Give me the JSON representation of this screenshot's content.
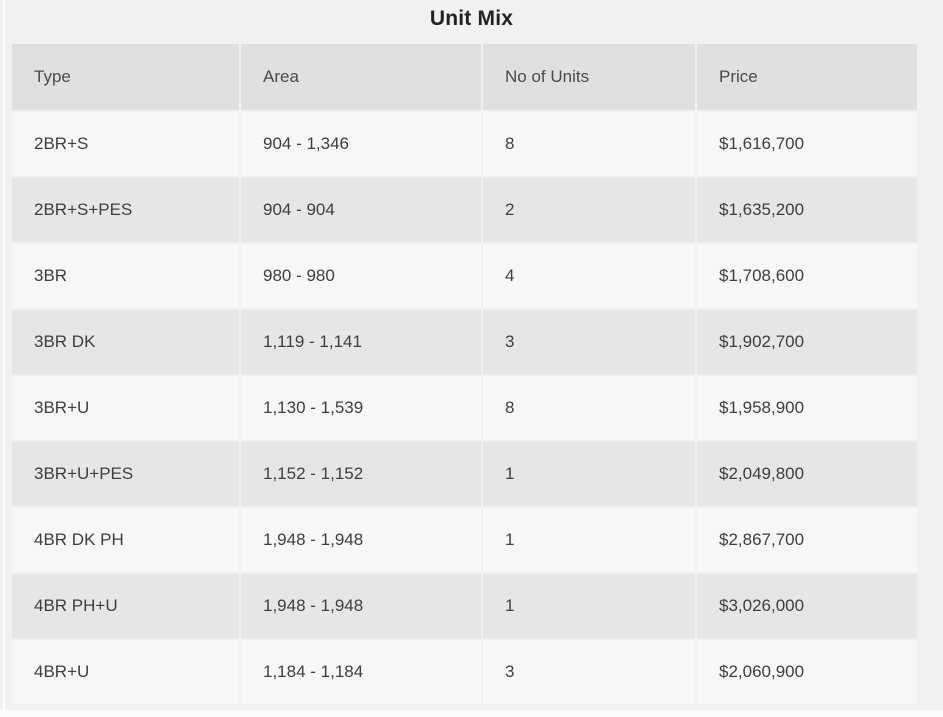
{
  "page": {
    "title": "Unit Mix"
  },
  "table": {
    "columns": [
      "Type",
      "Area",
      "No of Units",
      "Price"
    ],
    "rows": [
      {
        "type": "2BR+S",
        "area": "904 - 1,346",
        "units": "8",
        "price": "$1,616,700"
      },
      {
        "type": "2BR+S+PES",
        "area": "904 - 904",
        "units": "2",
        "price": "$1,635,200"
      },
      {
        "type": "3BR",
        "area": "980 - 980",
        "units": "4",
        "price": "$1,708,600"
      },
      {
        "type": "3BR DK",
        "area": "1,119 - 1,141",
        "units": "3",
        "price": "$1,902,700"
      },
      {
        "type": "3BR+U",
        "area": "1,130 - 1,539",
        "units": "8",
        "price": "$1,958,900"
      },
      {
        "type": "3BR+U+PES",
        "area": "1,152 - 1,152",
        "units": "1",
        "price": "$2,049,800"
      },
      {
        "type": "4BR DK PH",
        "area": "1,948 - 1,948",
        "units": "1",
        "price": "$2,867,700"
      },
      {
        "type": "4BR PH+U",
        "area": "1,948 - 1,948",
        "units": "1",
        "price": "$3,026,000"
      },
      {
        "type": "4BR+U",
        "area": "1,184 - 1,184",
        "units": "3",
        "price": "$2,060,900"
      }
    ]
  },
  "colors": {
    "page-bg": "#f1f1f1",
    "header-bg": "#e0e0e0",
    "row-odd-bg": "#f7f7f7",
    "row-even-bg": "#e6e6e6",
    "cell-border": "#f1f1f1",
    "title-text": "#222222",
    "header-text": "#4a4a4a",
    "body-text": "#3e3e3e"
  }
}
